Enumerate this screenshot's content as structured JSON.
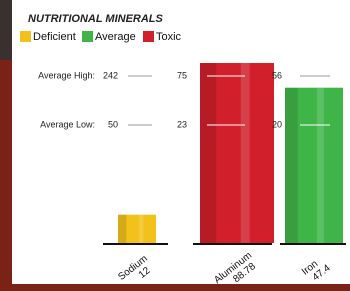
{
  "chart_data": {
    "type": "bar",
    "title": "NUTRITIONAL MINERALS",
    "legend": [
      {
        "name": "Deficient",
        "color": "#f2c21b"
      },
      {
        "name": "Average",
        "color": "#3fb548"
      },
      {
        "name": "Toxic",
        "color": "#d11f2b"
      }
    ],
    "reference_labels": [
      "Average High:",
      "Average Low:"
    ],
    "categories": [
      "Sodium",
      "Aluminum",
      "Iron"
    ],
    "values": [
      12,
      88.78,
      47.4
    ],
    "average_high": [
      242,
      75,
      56
    ],
    "average_low": [
      50,
      23,
      20
    ]
  }
}
